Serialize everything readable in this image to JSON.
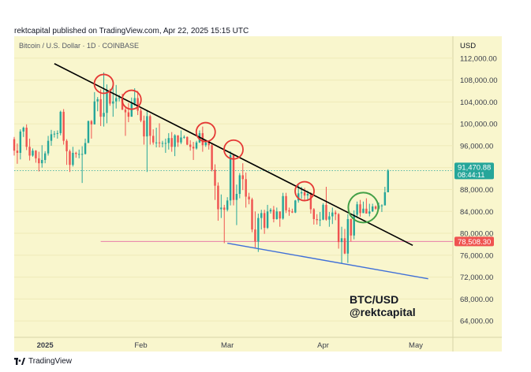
{
  "header": {
    "publisher_line": "rektcapital published on TradingView.com, Apr 22, 2025 15:15 UTC"
  },
  "footer": {
    "brand": "TradingView"
  },
  "colors": {
    "background": "#f9f6cd",
    "candle_up": "#26a69a",
    "candle_down": "#ef5350",
    "trendline": "#000000",
    "support_line": "#e87ea8",
    "lower_line": "#3f6fd8",
    "circle_red": "#e53935",
    "circle_green": "#43a047",
    "price_badge": "#26a69a",
    "support_badge": "#ef5350"
  },
  "chart_data": {
    "type": "candlestick",
    "symbol_line": "Bitcoin / U.S. Dollar · 1D · COINBASE",
    "currency": "USD",
    "y_range": [
      61000,
      116000
    ],
    "y_ticks": [
      "112,000.00",
      "108,000.00",
      "104,000.00",
      "100,000.00",
      "96,000.00",
      "92,000.00",
      "88,000.00",
      "84,000.00",
      "80,000.00",
      "76,000.00",
      "72,000.00",
      "68,000.00",
      "64,000.00"
    ],
    "y_tick_values": [
      112000,
      108000,
      104000,
      100000,
      96000,
      92000,
      88000,
      84000,
      80000,
      76000,
      72000,
      68000,
      64000
    ],
    "x_range": [
      "2024-12-22",
      "2025-05-13"
    ],
    "x_ticks": [
      {
        "date": "2025-01-01",
        "label": "2025",
        "bold": true
      },
      {
        "date": "2025-02-01",
        "label": "Feb",
        "bold": false
      },
      {
        "date": "2025-03-01",
        "label": "Mar",
        "bold": false
      },
      {
        "date": "2025-04-01",
        "label": "Apr",
        "bold": false
      },
      {
        "date": "2025-05-01",
        "label": "May",
        "bold": false
      }
    ],
    "last_price": {
      "value": 91470.88,
      "label": "91,470.88",
      "countdown": "08:44:11"
    },
    "support_level": {
      "value": 78508.3,
      "label": "78,508.30"
    },
    "trendline": {
      "start": {
        "date": "2025-01-04",
        "price": 111000
      },
      "end": {
        "date": "2025-04-30",
        "price": 77800
      }
    },
    "lower_line": {
      "start": {
        "date": "2025-03-01",
        "price": 78200
      },
      "end": {
        "date": "2025-05-05",
        "price": 71700
      }
    },
    "support_line_start": "2025-01-19",
    "red_circles": [
      {
        "date": "2025-01-20",
        "price": 107300
      },
      {
        "date": "2025-01-29",
        "price": 104400
      },
      {
        "date": "2025-02-22",
        "price": 98500
      },
      {
        "date": "2025-03-03",
        "price": 95300
      },
      {
        "date": "2025-03-26",
        "price": 87700
      }
    ],
    "green_circle": {
      "date": "2025-04-14",
      "price": 84700
    },
    "candles": [
      {
        "d": "2024-12-22",
        "o": 97200,
        "h": 97600,
        "l": 94200,
        "c": 95100
      },
      {
        "d": "2024-12-23",
        "o": 95100,
        "h": 96400,
        "l": 92700,
        "c": 94700
      },
      {
        "d": "2024-12-24",
        "o": 94700,
        "h": 99000,
        "l": 93500,
        "c": 98600
      },
      {
        "d": "2024-12-25",
        "o": 98600,
        "h": 99500,
        "l": 97600,
        "c": 99300
      },
      {
        "d": "2024-12-26",
        "o": 99300,
        "h": 99900,
        "l": 95200,
        "c": 95800
      },
      {
        "d": "2024-12-27",
        "o": 95800,
        "h": 97300,
        "l": 93300,
        "c": 94200
      },
      {
        "d": "2024-12-28",
        "o": 94200,
        "h": 95500,
        "l": 94000,
        "c": 95100
      },
      {
        "d": "2024-12-29",
        "o": 95100,
        "h": 95200,
        "l": 92900,
        "c": 93700
      },
      {
        "d": "2024-12-30",
        "o": 93700,
        "h": 94900,
        "l": 91300,
        "c": 92800
      },
      {
        "d": "2024-12-31",
        "o": 92800,
        "h": 96100,
        "l": 92000,
        "c": 93400
      },
      {
        "d": "2025-01-01",
        "o": 93400,
        "h": 95000,
        "l": 92800,
        "c": 94600
      },
      {
        "d": "2025-01-02",
        "o": 94600,
        "h": 97800,
        "l": 94200,
        "c": 96900
      },
      {
        "d": "2025-01-03",
        "o": 96900,
        "h": 98900,
        "l": 96000,
        "c": 98100
      },
      {
        "d": "2025-01-04",
        "o": 98100,
        "h": 98700,
        "l": 97500,
        "c": 98200
      },
      {
        "d": "2025-01-05",
        "o": 98200,
        "h": 98800,
        "l": 97300,
        "c": 98300
      },
      {
        "d": "2025-01-06",
        "o": 98300,
        "h": 102400,
        "l": 97900,
        "c": 102200
      },
      {
        "d": "2025-01-07",
        "o": 102200,
        "h": 102700,
        "l": 96200,
        "c": 96900
      },
      {
        "d": "2025-01-08",
        "o": 96900,
        "h": 97200,
        "l": 92500,
        "c": 95000
      },
      {
        "d": "2025-01-09",
        "o": 95000,
        "h": 95300,
        "l": 91200,
        "c": 92500
      },
      {
        "d": "2025-01-10",
        "o": 92500,
        "h": 95800,
        "l": 92200,
        "c": 94700
      },
      {
        "d": "2025-01-11",
        "o": 94700,
        "h": 94900,
        "l": 93800,
        "c": 94500
      },
      {
        "d": "2025-01-12",
        "o": 94500,
        "h": 95300,
        "l": 93700,
        "c": 94500
      },
      {
        "d": "2025-01-13",
        "o": 94500,
        "h": 95900,
        "l": 89200,
        "c": 94500
      },
      {
        "d": "2025-01-14",
        "o": 94500,
        "h": 97300,
        "l": 94400,
        "c": 96500
      },
      {
        "d": "2025-01-15",
        "o": 96500,
        "h": 100600,
        "l": 96500,
        "c": 100500
      },
      {
        "d": "2025-01-16",
        "o": 100500,
        "h": 100700,
        "l": 97300,
        "c": 99900
      },
      {
        "d": "2025-01-17",
        "o": 99900,
        "h": 105800,
        "l": 99900,
        "c": 104100
      },
      {
        "d": "2025-01-18",
        "o": 104100,
        "h": 104900,
        "l": 102300,
        "c": 104500
      },
      {
        "d": "2025-01-19",
        "o": 104500,
        "h": 106300,
        "l": 99600,
        "c": 101300
      },
      {
        "d": "2025-01-20",
        "o": 101300,
        "h": 109400,
        "l": 99500,
        "c": 102000
      },
      {
        "d": "2025-01-21",
        "o": 102000,
        "h": 107200,
        "l": 100100,
        "c": 106100
      },
      {
        "d": "2025-01-22",
        "o": 106100,
        "h": 106400,
        "l": 103300,
        "c": 103700
      },
      {
        "d": "2025-01-23",
        "o": 103700,
        "h": 106900,
        "l": 101300,
        "c": 104100
      },
      {
        "d": "2025-01-24",
        "o": 104100,
        "h": 107100,
        "l": 102800,
        "c": 104700
      },
      {
        "d": "2025-01-25",
        "o": 104700,
        "h": 105300,
        "l": 104100,
        "c": 104800
      },
      {
        "d": "2025-01-26",
        "o": 104800,
        "h": 105500,
        "l": 102500,
        "c": 102600
      },
      {
        "d": "2025-01-27",
        "o": 102600,
        "h": 103200,
        "l": 97800,
        "c": 102100
      },
      {
        "d": "2025-01-28",
        "o": 102100,
        "h": 103800,
        "l": 100300,
        "c": 101300
      },
      {
        "d": "2025-01-29",
        "o": 101300,
        "h": 104800,
        "l": 101300,
        "c": 103700
      },
      {
        "d": "2025-01-30",
        "o": 103700,
        "h": 106500,
        "l": 103300,
        "c": 104700
      },
      {
        "d": "2025-01-31",
        "o": 104700,
        "h": 106000,
        "l": 101600,
        "c": 102400
      },
      {
        "d": "2025-02-01",
        "o": 102400,
        "h": 102800,
        "l": 100300,
        "c": 100600
      },
      {
        "d": "2025-02-02",
        "o": 100600,
        "h": 101500,
        "l": 96200,
        "c": 97700
      },
      {
        "d": "2025-02-03",
        "o": 97700,
        "h": 102500,
        "l": 91200,
        "c": 101400
      },
      {
        "d": "2025-02-04",
        "o": 101400,
        "h": 101700,
        "l": 96200,
        "c": 97800
      },
      {
        "d": "2025-02-05",
        "o": 97800,
        "h": 99000,
        "l": 96200,
        "c": 96600
      },
      {
        "d": "2025-02-06",
        "o": 96600,
        "h": 99300,
        "l": 95700,
        "c": 96600
      },
      {
        "d": "2025-02-07",
        "o": 96600,
        "h": 100100,
        "l": 95700,
        "c": 96500
      },
      {
        "d": "2025-02-08",
        "o": 96500,
        "h": 96900,
        "l": 95700,
        "c": 96500
      },
      {
        "d": "2025-02-09",
        "o": 96500,
        "h": 97300,
        "l": 94700,
        "c": 96500
      },
      {
        "d": "2025-02-10",
        "o": 96500,
        "h": 98300,
        "l": 95300,
        "c": 97400
      },
      {
        "d": "2025-02-11",
        "o": 97400,
        "h": 98500,
        "l": 94900,
        "c": 95800
      },
      {
        "d": "2025-02-12",
        "o": 95800,
        "h": 98100,
        "l": 94100,
        "c": 97900
      },
      {
        "d": "2025-02-13",
        "o": 97900,
        "h": 97900,
        "l": 95800,
        "c": 96600
      },
      {
        "d": "2025-02-14",
        "o": 96600,
        "h": 98800,
        "l": 96300,
        "c": 97500
      },
      {
        "d": "2025-02-15",
        "o": 97500,
        "h": 97900,
        "l": 97300,
        "c": 97600
      },
      {
        "d": "2025-02-16",
        "o": 97600,
        "h": 97700,
        "l": 96100,
        "c": 96200
      },
      {
        "d": "2025-02-17",
        "o": 96200,
        "h": 97000,
        "l": 95100,
        "c": 95800
      },
      {
        "d": "2025-02-18",
        "o": 95800,
        "h": 96700,
        "l": 93400,
        "c": 95500
      },
      {
        "d": "2025-02-19",
        "o": 95500,
        "h": 96900,
        "l": 95300,
        "c": 96600
      },
      {
        "d": "2025-02-20",
        "o": 96600,
        "h": 98800,
        "l": 96500,
        "c": 98300
      },
      {
        "d": "2025-02-21",
        "o": 98300,
        "h": 99500,
        "l": 94900,
        "c": 96100
      },
      {
        "d": "2025-02-22",
        "o": 96100,
        "h": 96900,
        "l": 95800,
        "c": 96600
      },
      {
        "d": "2025-02-23",
        "o": 96600,
        "h": 96700,
        "l": 95300,
        "c": 96100
      },
      {
        "d": "2025-02-24",
        "o": 96100,
        "h": 96500,
        "l": 91300,
        "c": 91600
      },
      {
        "d": "2025-02-25",
        "o": 91600,
        "h": 92600,
        "l": 86100,
        "c": 88700
      },
      {
        "d": "2025-02-26",
        "o": 88700,
        "h": 89300,
        "l": 82300,
        "c": 84400
      },
      {
        "d": "2025-02-27",
        "o": 84400,
        "h": 87100,
        "l": 82800,
        "c": 84700
      },
      {
        "d": "2025-02-28",
        "o": 84700,
        "h": 85200,
        "l": 78200,
        "c": 84300
      },
      {
        "d": "2025-03-01",
        "o": 84300,
        "h": 86600,
        "l": 84000,
        "c": 86000
      },
      {
        "d": "2025-03-02",
        "o": 86000,
        "h": 95000,
        "l": 85100,
        "c": 94300
      },
      {
        "d": "2025-03-03",
        "o": 94300,
        "h": 94400,
        "l": 85100,
        "c": 86100
      },
      {
        "d": "2025-03-04",
        "o": 86100,
        "h": 88900,
        "l": 81500,
        "c": 87200
      },
      {
        "d": "2025-03-05",
        "o": 87200,
        "h": 91000,
        "l": 86400,
        "c": 90600
      },
      {
        "d": "2025-03-06",
        "o": 90600,
        "h": 92800,
        "l": 87900,
        "c": 89900
      },
      {
        "d": "2025-03-07",
        "o": 89900,
        "h": 91100,
        "l": 84700,
        "c": 86700
      },
      {
        "d": "2025-03-08",
        "o": 86700,
        "h": 87400,
        "l": 85300,
        "c": 86200
      },
      {
        "d": "2025-03-09",
        "o": 86200,
        "h": 86500,
        "l": 80200,
        "c": 80700
      },
      {
        "d": "2025-03-10",
        "o": 80700,
        "h": 84000,
        "l": 77400,
        "c": 78500
      },
      {
        "d": "2025-03-11",
        "o": 78500,
        "h": 83600,
        "l": 76600,
        "c": 82800
      },
      {
        "d": "2025-03-12",
        "o": 82800,
        "h": 84300,
        "l": 80700,
        "c": 83700
      },
      {
        "d": "2025-03-13",
        "o": 83700,
        "h": 84300,
        "l": 79900,
        "c": 81000
      },
      {
        "d": "2025-03-14",
        "o": 81000,
        "h": 85200,
        "l": 80800,
        "c": 84000
      },
      {
        "d": "2025-03-15",
        "o": 84000,
        "h": 84600,
        "l": 83600,
        "c": 84300
      },
      {
        "d": "2025-03-16",
        "o": 84300,
        "h": 85000,
        "l": 82000,
        "c": 82600
      },
      {
        "d": "2025-03-17",
        "o": 82600,
        "h": 84700,
        "l": 82500,
        "c": 84000
      },
      {
        "d": "2025-03-18",
        "o": 84000,
        "h": 84000,
        "l": 81200,
        "c": 82700
      },
      {
        "d": "2025-03-19",
        "o": 82700,
        "h": 87400,
        "l": 82500,
        "c": 86800
      },
      {
        "d": "2025-03-20",
        "o": 86800,
        "h": 87400,
        "l": 83700,
        "c": 84200
      },
      {
        "d": "2025-03-21",
        "o": 84200,
        "h": 84700,
        "l": 83200,
        "c": 84000
      },
      {
        "d": "2025-03-22",
        "o": 84000,
        "h": 84500,
        "l": 83700,
        "c": 83800
      },
      {
        "d": "2025-03-23",
        "o": 83800,
        "h": 86100,
        "l": 83700,
        "c": 86000
      },
      {
        "d": "2025-03-24",
        "o": 86000,
        "h": 88800,
        "l": 85600,
        "c": 87300
      },
      {
        "d": "2025-03-25",
        "o": 87300,
        "h": 88500,
        "l": 86300,
        "c": 87500
      },
      {
        "d": "2025-03-26",
        "o": 87500,
        "h": 88300,
        "l": 85900,
        "c": 86900
      },
      {
        "d": "2025-03-27",
        "o": 86900,
        "h": 87800,
        "l": 85900,
        "c": 87200
      },
      {
        "d": "2025-03-28",
        "o": 87200,
        "h": 87500,
        "l": 83600,
        "c": 84400
      },
      {
        "d": "2025-03-29",
        "o": 84400,
        "h": 84600,
        "l": 81600,
        "c": 82600
      },
      {
        "d": "2025-03-30",
        "o": 82600,
        "h": 83500,
        "l": 81600,
        "c": 82400
      },
      {
        "d": "2025-03-31",
        "o": 82400,
        "h": 83900,
        "l": 81300,
        "c": 82500
      },
      {
        "d": "2025-04-01",
        "o": 82500,
        "h": 85500,
        "l": 82400,
        "c": 85200
      },
      {
        "d": "2025-04-02",
        "o": 85200,
        "h": 88500,
        "l": 82300,
        "c": 82500
      },
      {
        "d": "2025-04-03",
        "o": 82500,
        "h": 83900,
        "l": 81200,
        "c": 83100
      },
      {
        "d": "2025-04-04",
        "o": 83100,
        "h": 84700,
        "l": 81700,
        "c": 83800
      },
      {
        "d": "2025-04-05",
        "o": 83800,
        "h": 84200,
        "l": 82400,
        "c": 83500
      },
      {
        "d": "2025-04-06",
        "o": 83500,
        "h": 83700,
        "l": 77200,
        "c": 78400
      },
      {
        "d": "2025-04-07",
        "o": 78400,
        "h": 81200,
        "l": 74500,
        "c": 79100
      },
      {
        "d": "2025-04-08",
        "o": 79100,
        "h": 80800,
        "l": 76200,
        "c": 76300
      },
      {
        "d": "2025-04-09",
        "o": 76300,
        "h": 83500,
        "l": 74600,
        "c": 82600
      },
      {
        "d": "2025-04-10",
        "o": 82600,
        "h": 82700,
        "l": 78500,
        "c": 79600
      },
      {
        "d": "2025-04-11",
        "o": 79600,
        "h": 84200,
        "l": 78900,
        "c": 83400
      },
      {
        "d": "2025-04-12",
        "o": 83400,
        "h": 85800,
        "l": 82800,
        "c": 85300
      },
      {
        "d": "2025-04-13",
        "o": 85300,
        "h": 86100,
        "l": 83000,
        "c": 83700
      },
      {
        "d": "2025-04-14",
        "o": 83700,
        "h": 85800,
        "l": 83700,
        "c": 84500
      },
      {
        "d": "2025-04-15",
        "o": 84500,
        "h": 86400,
        "l": 83600,
        "c": 83600
      },
      {
        "d": "2025-04-16",
        "o": 83600,
        "h": 85400,
        "l": 83100,
        "c": 84000
      },
      {
        "d": "2025-04-17",
        "o": 84000,
        "h": 85400,
        "l": 83900,
        "c": 84900
      },
      {
        "d": "2025-04-18",
        "o": 84900,
        "h": 85100,
        "l": 84300,
        "c": 84500
      },
      {
        "d": "2025-04-19",
        "o": 84500,
        "h": 85600,
        "l": 84300,
        "c": 85100
      },
      {
        "d": "2025-04-20",
        "o": 85100,
        "h": 85300,
        "l": 83900,
        "c": 85100
      },
      {
        "d": "2025-04-21",
        "o": 85100,
        "h": 88500,
        "l": 85100,
        "c": 87500
      },
      {
        "d": "2025-04-22",
        "o": 87500,
        "h": 91700,
        "l": 87500,
        "c": 91470
      }
    ],
    "annotation": {
      "line1": "BTC/USD",
      "line2": "@rektcapital"
    }
  }
}
